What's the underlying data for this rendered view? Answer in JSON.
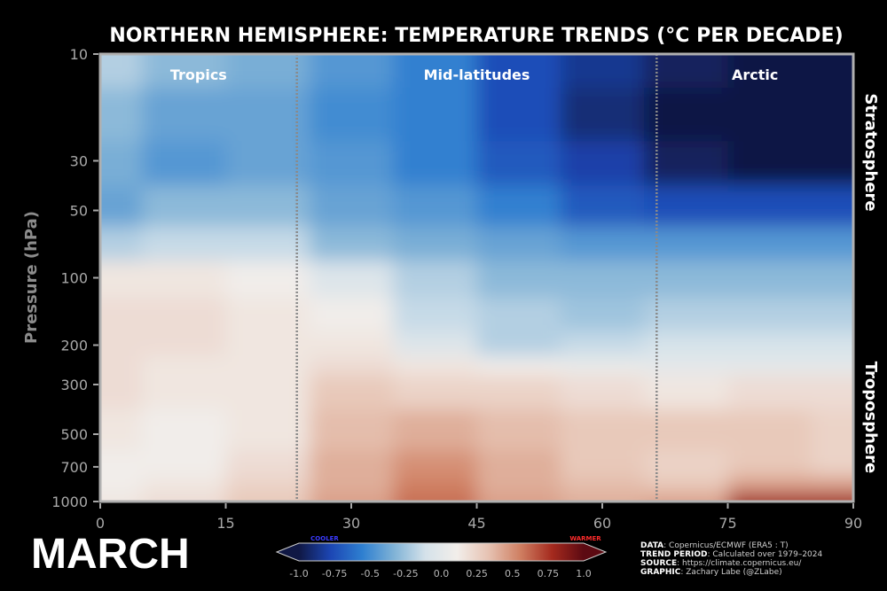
{
  "chart_data": {
    "type": "heatmap",
    "title": "NORTHERN HEMISPHERE: TEMPERATURE TRENDS (°C PER DECADE)",
    "month": "MARCH",
    "ylabel": "Pressure (hPa)",
    "xlim": [
      0,
      90
    ],
    "ylim": [
      1000,
      10
    ],
    "y_scale": "log",
    "x_ticks": [
      "0",
      "15",
      "30",
      "45",
      "60",
      "75",
      "90"
    ],
    "y_ticks": [
      "10",
      "30",
      "50",
      "100",
      "200",
      "300",
      "500",
      "700",
      "1000"
    ],
    "region_boundaries": [
      23.5,
      66.5
    ],
    "regions": [
      "Tropics",
      "Mid-latitudes",
      "Arctic"
    ],
    "layers": [
      "Stratosphere",
      "Troposphere"
    ],
    "colorbar": {
      "ticks": [
        "-1.0",
        "-0.75",
        "-0.5",
        "-0.25",
        "0.0",
        "0.25",
        "0.5",
        "0.75",
        "1.0"
      ],
      "range": [
        -1.0,
        1.0
      ],
      "cooler_label": "COOLER",
      "warmer_label": "WARMER",
      "cooler_color": "#3a3aff",
      "warmer_color": "#ff2b2b"
    },
    "colormap": [
      "#101844",
      "#1c46b4",
      "#2e7fd0",
      "#7fb2d6",
      "#d5e2ea",
      "#f2eeea",
      "#e6c2b2",
      "#cf7f62",
      "#a52a1e",
      "#5c0a12"
    ],
    "latitudes": [
      0,
      10,
      20,
      30,
      40,
      50,
      60,
      70,
      80,
      90
    ],
    "pressure_levels": [
      10,
      20,
      30,
      50,
      70,
      100,
      150,
      200,
      250,
      300,
      500,
      700,
      850,
      1000
    ],
    "trend_grid": [
      [
        -0.2,
        -0.3,
        -0.35,
        -0.45,
        -0.55,
        -0.75,
        -0.85,
        -0.95,
        -1.0,
        -1.0
      ],
      [
        -0.3,
        -0.4,
        -0.4,
        -0.5,
        -0.55,
        -0.75,
        -0.9,
        -1.0,
        -1.0,
        -1.0
      ],
      [
        -0.35,
        -0.45,
        -0.4,
        -0.45,
        -0.55,
        -0.7,
        -0.8,
        -0.95,
        -1.0,
        -1.0
      ],
      [
        -0.4,
        -0.3,
        -0.3,
        -0.4,
        -0.45,
        -0.55,
        -0.7,
        -0.75,
        -0.75,
        -0.75
      ],
      [
        -0.2,
        -0.15,
        -0.15,
        -0.3,
        -0.35,
        -0.4,
        -0.45,
        -0.45,
        -0.45,
        -0.45
      ],
      [
        0.15,
        0.15,
        0.1,
        -0.05,
        -0.2,
        -0.3,
        -0.3,
        -0.3,
        -0.3,
        -0.3
      ],
      [
        0.2,
        0.2,
        0.15,
        0.1,
        -0.15,
        -0.2,
        -0.25,
        -0.2,
        -0.2,
        -0.2
      ],
      [
        0.2,
        0.2,
        0.15,
        0.15,
        -0.05,
        -0.2,
        -0.15,
        -0.1,
        -0.1,
        -0.1
      ],
      [
        0.2,
        0.15,
        0.15,
        0.2,
        0.15,
        0.1,
        0.05,
        0.0,
        0.0,
        0.0
      ],
      [
        0.2,
        0.15,
        0.15,
        0.3,
        0.25,
        0.25,
        0.2,
        0.15,
        0.2,
        0.2
      ],
      [
        0.15,
        0.1,
        0.15,
        0.35,
        0.4,
        0.35,
        0.3,
        0.3,
        0.3,
        0.25
      ],
      [
        0.1,
        0.1,
        0.2,
        0.4,
        0.5,
        0.4,
        0.3,
        0.25,
        0.3,
        0.25
      ],
      [
        0.1,
        0.15,
        0.25,
        0.4,
        0.55,
        0.4,
        0.35,
        0.3,
        0.45,
        0.45
      ],
      [
        0.15,
        0.2,
        0.3,
        0.45,
        0.6,
        0.45,
        0.4,
        0.45,
        0.8,
        0.8
      ]
    ]
  },
  "credits": {
    "data_label": "DATA",
    "data_value": ": Copernicus/ECMWF (ERA5 : T)",
    "period_label": "TREND PERIOD",
    "period_value": ": Calculated over 1979–2024",
    "source_label": "SOURCE",
    "source_value": ": https://climate.copernicus.eu/",
    "graphic_label": "GRAPHIC",
    "graphic_value": ": Zachary Labe (@ZLabe)"
  }
}
